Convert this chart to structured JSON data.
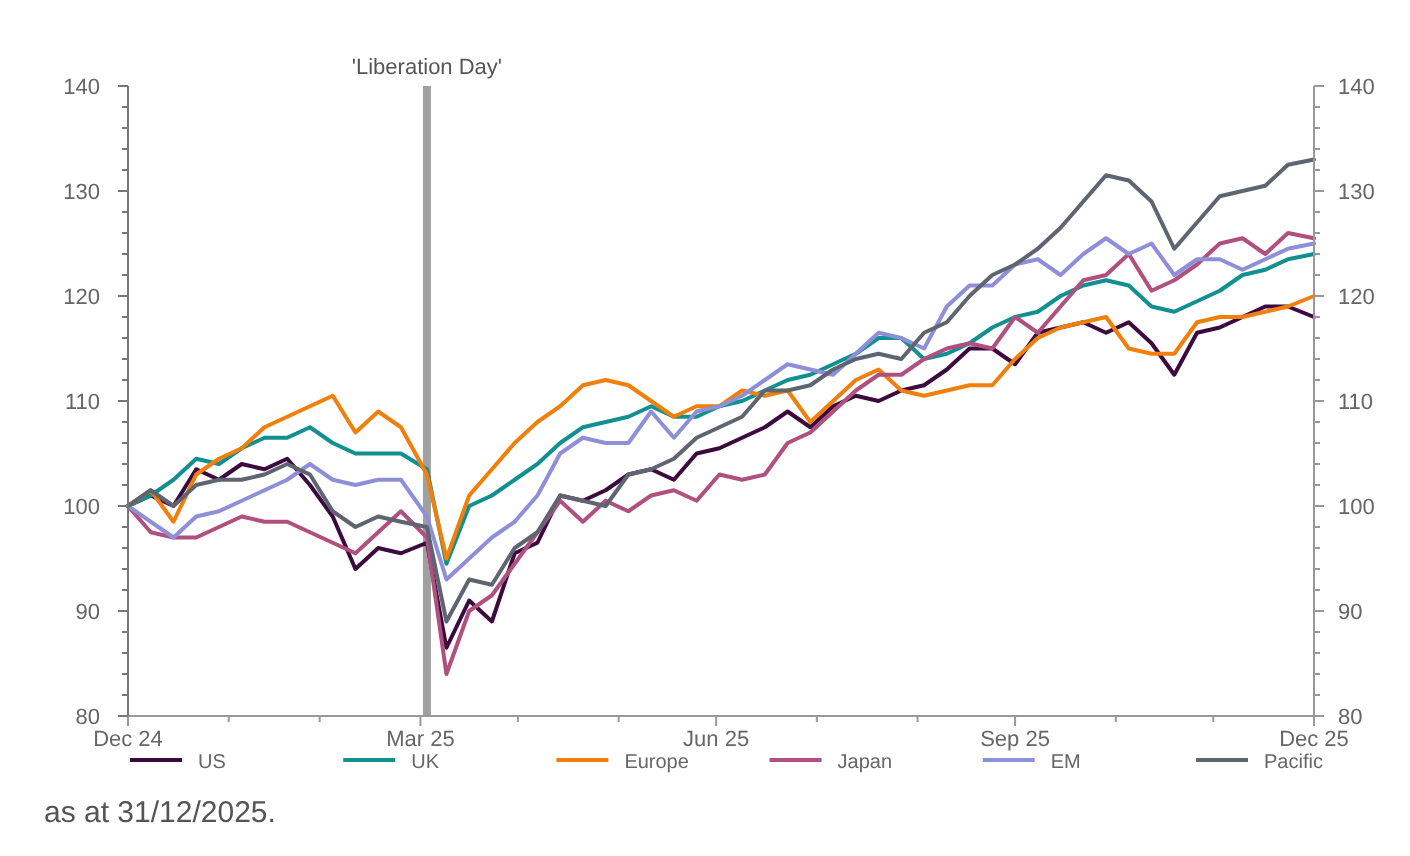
{
  "chart_data": {
    "type": "line",
    "x": [
      "2024-12-31",
      "2025-01-07",
      "2025-01-14",
      "2025-01-21",
      "2025-01-28",
      "2025-02-04",
      "2025-02-11",
      "2025-02-18",
      "2025-02-25",
      "2025-03-04",
      "2025-03-11",
      "2025-03-18",
      "2025-03-25",
      "2025-04-02",
      "2025-04-08",
      "2025-04-15",
      "2025-04-22",
      "2025-04-29",
      "2025-05-06",
      "2025-05-13",
      "2025-05-20",
      "2025-05-27",
      "2025-06-03",
      "2025-06-10",
      "2025-06-17",
      "2025-06-24",
      "2025-07-01",
      "2025-07-08",
      "2025-07-15",
      "2025-07-22",
      "2025-07-29",
      "2025-08-05",
      "2025-08-12",
      "2025-08-19",
      "2025-08-26",
      "2025-09-02",
      "2025-09-09",
      "2025-09-16",
      "2025-09-23",
      "2025-09-30",
      "2025-10-07",
      "2025-10-14",
      "2025-10-21",
      "2025-10-28",
      "2025-11-04",
      "2025-11-11",
      "2025-11-18",
      "2025-11-25",
      "2025-12-02",
      "2025-12-09",
      "2025-12-16",
      "2025-12-23",
      "2025-12-31"
    ],
    "series": [
      {
        "name": "US",
        "color": "#3d0a3f",
        "values": [
          100,
          101,
          100,
          103.5,
          102.5,
          104,
          103.5,
          104.5,
          102,
          99,
          94,
          96,
          95.5,
          96.5,
          86.5,
          91,
          89,
          95.5,
          96.5,
          101,
          100.5,
          101.5,
          103,
          103.5,
          102.5,
          105,
          105.5,
          106.5,
          107.5,
          109,
          107.5,
          109.5,
          110.5,
          110,
          111,
          111.5,
          113,
          115,
          115,
          113.5,
          116.5,
          117,
          117.5,
          116.5,
          117.5,
          115.5,
          112.5,
          116.5,
          117,
          118,
          119,
          119,
          118
        ]
      },
      {
        "name": "UK",
        "color": "#109090",
        "values": [
          100,
          101,
          102.5,
          104.5,
          104,
          105.5,
          106.5,
          106.5,
          107.5,
          106,
          105,
          105,
          105,
          103.5,
          94.5,
          100,
          101,
          102.5,
          104,
          106,
          107.5,
          108,
          108.5,
          109.5,
          108.5,
          108.5,
          109.5,
          110,
          111,
          112,
          112.5,
          113.5,
          114.5,
          116,
          116,
          114,
          114.5,
          115.5,
          117,
          118,
          118.5,
          120,
          121,
          121.5,
          121,
          119,
          118.5,
          119.5,
          120.5,
          122,
          122.5,
          123.5,
          124
        ]
      },
      {
        "name": "Europe",
        "color": "#f07f0c",
        "values": [
          100,
          101.5,
          98.5,
          103,
          104.5,
          105.5,
          107.5,
          108.5,
          109.5,
          110.5,
          107,
          109,
          107.5,
          103,
          95,
          101,
          103.5,
          106,
          108,
          109.5,
          111.5,
          112,
          111.5,
          110,
          108.5,
          109.5,
          109.5,
          111,
          110.5,
          111,
          108,
          110,
          112,
          113,
          111,
          110.5,
          111,
          111.5,
          111.5,
          114,
          116,
          117,
          117.5,
          118,
          115,
          114.5,
          114.5,
          117.5,
          118,
          118,
          118.5,
          119,
          120
        ]
      },
      {
        "name": "Japan",
        "color": "#b0507f",
        "values": [
          100,
          97.5,
          97,
          97,
          98,
          99,
          98.5,
          98.5,
          97.5,
          96.5,
          95.5,
          97.5,
          99.5,
          97,
          84,
          90,
          91.5,
          94.5,
          97.5,
          100.5,
          98.5,
          100.5,
          99.5,
          101,
          101.5,
          100.5,
          103,
          102.5,
          103,
          106,
          107,
          109,
          111,
          112.5,
          112.5,
          114,
          115,
          115.5,
          115,
          118,
          116.5,
          119,
          121.5,
          122,
          124,
          120.5,
          121.5,
          123,
          125,
          125.5,
          124,
          126,
          125.5
        ]
      },
      {
        "name": "EM",
        "color": "#8f8fd9",
        "values": [
          100,
          98.5,
          97,
          99,
          99.5,
          100.5,
          101.5,
          102.5,
          104,
          102.5,
          102,
          102.5,
          102.5,
          99,
          93,
          95,
          97,
          98.5,
          101,
          105,
          106.5,
          106,
          106,
          109,
          106.5,
          109,
          109.5,
          110.5,
          112,
          113.5,
          113,
          112.5,
          114.5,
          116.5,
          116,
          115,
          119,
          121,
          121,
          123,
          123.5,
          122,
          124,
          125.5,
          124,
          125,
          122,
          123.5,
          123.5,
          122.5,
          123.5,
          124.5,
          125
        ]
      },
      {
        "name": "Pacific",
        "color": "#5e6470",
        "values": [
          100,
          101.5,
          100,
          102,
          102.5,
          102.5,
          103,
          104,
          103,
          99.5,
          98,
          99,
          98.5,
          98,
          89,
          93,
          92.5,
          96,
          97.5,
          101,
          100.5,
          100,
          103,
          103.5,
          104.5,
          106.5,
          107.5,
          108.5,
          111,
          111,
          111.5,
          113,
          114,
          114.5,
          114,
          116.5,
          117.5,
          120,
          122,
          123,
          124.5,
          126.5,
          129,
          131.5,
          131,
          129,
          124.5,
          127,
          129.5,
          130,
          130.5,
          132.5,
          133
        ]
      }
    ],
    "xlim": [
      "2024-12-31",
      "2025-12-31"
    ],
    "xticks": [
      {
        "value": "2024-12-31",
        "label": "Dec 24"
      },
      {
        "value": "2025-01-31",
        "label": null
      },
      {
        "value": "2025-02-28",
        "label": null
      },
      {
        "value": "2025-03-31",
        "label": "Mar 25"
      },
      {
        "value": "2025-04-30",
        "label": null
      },
      {
        "value": "2025-05-31",
        "label": null
      },
      {
        "value": "2025-06-30",
        "label": "Jun 25"
      },
      {
        "value": "2025-07-31",
        "label": null
      },
      {
        "value": "2025-08-31",
        "label": null
      },
      {
        "value": "2025-09-30",
        "label": "Sep 25"
      },
      {
        "value": "2025-10-31",
        "label": null
      },
      {
        "value": "2025-11-30",
        "label": null
      },
      {
        "value": "2025-12-31",
        "label": "Dec 25"
      }
    ],
    "ylim": [
      80,
      140
    ],
    "yticks": [
      80,
      {
        "value": 82,
        "label": null
      },
      {
        "value": 84,
        "label": null
      },
      {
        "value": 86,
        "label": null
      },
      {
        "value": 88,
        "label": null
      },
      90,
      {
        "value": 92,
        "label": null
      },
      {
        "value": 94,
        "label": null
      },
      {
        "value": 96,
        "label": null
      },
      {
        "value": 98,
        "label": null
      },
      100,
      {
        "value": 102,
        "label": null
      },
      {
        "value": 104,
        "label": null
      },
      {
        "value": 106,
        "label": null
      },
      {
        "value": 108,
        "label": null
      },
      110,
      {
        "value": 112,
        "label": null
      },
      {
        "value": 114,
        "label": null
      },
      {
        "value": 116,
        "label": null
      },
      {
        "value": 118,
        "label": null
      },
      120,
      {
        "value": 122,
        "label": null
      },
      {
        "value": 124,
        "label": null
      },
      {
        "value": 126,
        "label": null
      },
      {
        "value": 128,
        "label": null
      },
      130,
      {
        "value": 132,
        "label": null
      },
      {
        "value": 134,
        "label": null
      },
      {
        "value": 136,
        "label": null
      },
      {
        "value": 138,
        "label": null
      },
      140
    ],
    "y2lim": [
      80,
      140
    ],
    "y2ticks": [
      80,
      {
        "value": 82,
        "label": null
      },
      {
        "value": 84,
        "label": null
      },
      {
        "value": 86,
        "label": null
      },
      {
        "value": 88,
        "label": null
      },
      90,
      {
        "value": 92,
        "label": null
      },
      {
        "value": 94,
        "label": null
      },
      {
        "value": 96,
        "label": null
      },
      {
        "value": 98,
        "label": null
      },
      100,
      {
        "value": 102,
        "label": null
      },
      {
        "value": 104,
        "label": null
      },
      {
        "value": 106,
        "label": null
      },
      {
        "value": 108,
        "label": null
      },
      110,
      {
        "value": 112,
        "label": null
      },
      {
        "value": 114,
        "label": null
      },
      {
        "value": 116,
        "label": null
      },
      {
        "value": 118,
        "label": null
      },
      120,
      {
        "value": 122,
        "label": null
      },
      {
        "value": 124,
        "label": null
      },
      {
        "value": 126,
        "label": null
      },
      {
        "value": 128,
        "label": null
      },
      130,
      {
        "value": 132,
        "label": null
      },
      {
        "value": 134,
        "label": null
      },
      {
        "value": 136,
        "label": null
      },
      {
        "value": 138,
        "label": null
      },
      140
    ],
    "ref_lines": [
      {
        "axis": "x",
        "value": "2025-04-02",
        "label": "'Liberation Day'",
        "color": "#a0a0a0"
      }
    ],
    "legend": "bottom",
    "grid": false,
    "marker": "none",
    "line_style": "solid",
    "annotations": [
      "as at 31/12/2025."
    ]
  }
}
